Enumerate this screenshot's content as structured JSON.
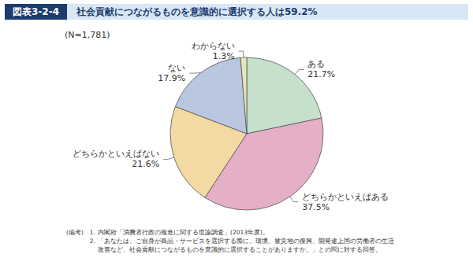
{
  "chart_data": {
    "type": "pie",
    "label": "図表3-2-4",
    "title": "社会貢献につながるものを意識的に選択する人は59.2%",
    "annotations": [
      "(N=1,781)"
    ],
    "notes_heading": "(備考)",
    "notes": [
      {
        "number": "1.",
        "text": "内閣府「消費者行政の推進に関する世論調査」(2013年度)。"
      },
      {
        "number": "2.",
        "text": "「あなたは、ご自身が商品・サービスを選択する際に、環境、被災地の復興、開発途上国の労働者の生活改善など、社会貢献につながるものを意識的に選択することがありますか。」との問に対する回答。"
      }
    ],
    "categories": [
      "ある",
      "どちらかといえばある",
      "どちらかといえばない",
      "ない",
      "わからない"
    ],
    "values": [
      21.7,
      37.5,
      21.6,
      17.9,
      1.3
    ],
    "value_labels": [
      "21.7%",
      "37.5%",
      "21.6%",
      "17.9%",
      "1.3%"
    ],
    "colors": [
      "#c6e0cb",
      "#e5afc8",
      "#f3d9a2",
      "#b9c7e1",
      "#e4e8b8"
    ],
    "data_labels": true
  }
}
